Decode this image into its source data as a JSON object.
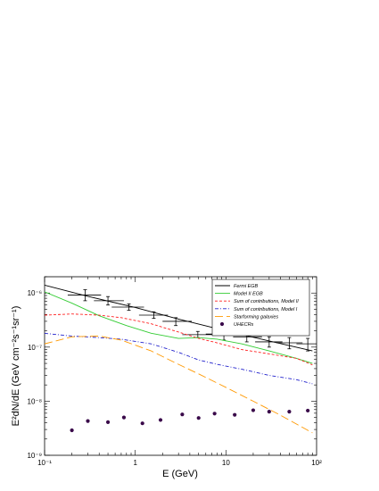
{
  "chart_data": {
    "type": "line",
    "xlabel": "E (GeV)",
    "ylabel": "E²dN/dE (GeV cm⁻²s⁻¹sr⁻¹)",
    "xscale": "log",
    "yscale": "log",
    "xlim": [
      0.1,
      100
    ],
    "ylim": [
      1e-09,
      2e-06
    ],
    "x_ticks": [
      "10⁻¹",
      "1",
      "10",
      "10²"
    ],
    "y_ticks": [
      "10⁻⁹",
      "10⁻⁸",
      "10⁻⁷",
      "10⁻⁶"
    ],
    "grid": false,
    "legend_position": "top-right",
    "series": [
      {
        "name": "Fermi EGB",
        "type": "line",
        "color": "#000000",
        "style": "solid",
        "x": [
          0.1,
          0.3,
          1,
          3,
          10,
          30,
          90
        ],
        "y": [
          1.4e-06,
          8.7e-07,
          5.4e-07,
          3.3e-07,
          2e-07,
          1.3e-07,
          8.5e-08
        ]
      },
      {
        "name": "Fermi EGB data",
        "type": "errorbar",
        "color": "#000000",
        "x": [
          0.28,
          0.5,
          0.85,
          1.6,
          2.8,
          4.9,
          9.5,
          17,
          30,
          50,
          80
        ],
        "xerr_low": [
          0.18,
          0.35,
          0.55,
          1.1,
          2.0,
          3.3,
          6.0,
          12,
          21,
          36,
          60
        ],
        "xerr_high": [
          0.42,
          0.75,
          1.25,
          2.3,
          4.2,
          7.0,
          14,
          25,
          42,
          70,
          100
        ],
        "y": [
          9.2e-07,
          7.2e-07,
          5.5e-07,
          3.9e-07,
          3e-07,
          1.7e-07,
          1.75e-07,
          1.55e-07,
          1.25e-07,
          1.2e-07,
          1.15e-07
        ],
        "yerr_low": [
          7.2e-07,
          6e-07,
          4.8e-07,
          3.4e-07,
          2.5e-07,
          1.5e-07,
          1.35e-07,
          1.25e-07,
          1e-07,
          9.3e-08,
          8.5e-08
        ],
        "yerr_high": [
          1.15e-06,
          8.6e-07,
          6.3e-07,
          4.5e-07,
          3.5e-07,
          1.95e-07,
          2.15e-07,
          1.9e-07,
          1.55e-07,
          1.5e-07,
          1.45e-07
        ]
      },
      {
        "name": "Model II EGB",
        "type": "line",
        "color": "#33cc33",
        "style": "solid",
        "x": [
          0.1,
          0.2,
          0.4,
          0.8,
          1.5,
          3,
          5,
          8,
          15,
          30,
          60,
          90
        ],
        "y": [
          1.05e-06,
          6.5e-07,
          3.8e-07,
          2.5e-07,
          1.8e-07,
          1.45e-07,
          1.5e-07,
          1.4e-07,
          1.15e-07,
          8.5e-08,
          6.2e-08,
          5e-08
        ]
      },
      {
        "name": "Sum of contributions, Model II",
        "type": "line",
        "color": "#ff2222",
        "style": "dashed",
        "x": [
          0.1,
          0.2,
          0.4,
          0.7,
          1.5,
          3,
          5,
          8,
          15,
          30,
          60,
          90
        ],
        "y": [
          3.9e-07,
          4.1e-07,
          3.9e-07,
          3.5e-07,
          2.7e-07,
          1.9e-07,
          1.45e-07,
          1.2e-07,
          9e-08,
          7.5e-08,
          6.2e-08,
          4.7e-08
        ]
      },
      {
        "name": "Sum of contributions, Model I",
        "type": "line",
        "color": "#2222cc",
        "style": "dash-dot",
        "x": [
          0.1,
          0.2,
          0.4,
          0.7,
          1.5,
          3,
          5,
          8,
          15,
          30,
          60,
          90
        ],
        "y": [
          1.8e-07,
          1.6e-07,
          1.5e-07,
          1.4e-07,
          1.15e-07,
          8e-08,
          5.8e-08,
          4.8e-08,
          3.9e-08,
          3e-08,
          2.5e-08,
          2.1e-08
        ]
      },
      {
        "name": "Starforming galaxies",
        "type": "line",
        "color": "#ff9900",
        "style": "long-dash",
        "x": [
          0.1,
          0.2,
          0.4,
          0.7,
          1.5,
          3,
          5,
          10,
          20,
          40,
          90
        ],
        "y": [
          1.15e-07,
          1.55e-07,
          1.6e-07,
          1.35e-07,
          8.5e-08,
          4.8e-08,
          3.2e-08,
          1.8e-08,
          1e-08,
          5.5e-09,
          2.6e-09
        ]
      },
      {
        "name": "UHECRs",
        "type": "scatter",
        "color": "#3a0a4a",
        "x": [
          0.2,
          0.3,
          0.5,
          0.75,
          1.2,
          1.9,
          3.3,
          5,
          7.5,
          12.5,
          20,
          30,
          50,
          80
        ],
        "y": [
          2.9e-09,
          4.3e-09,
          4.1e-09,
          5e-09,
          3.9e-09,
          4.5e-09,
          5.7e-09,
          4.9e-09,
          5.9e-09,
          5.6e-09,
          6.8e-09,
          6.4e-09,
          6.4e-09,
          6.7e-09
        ]
      }
    ]
  }
}
